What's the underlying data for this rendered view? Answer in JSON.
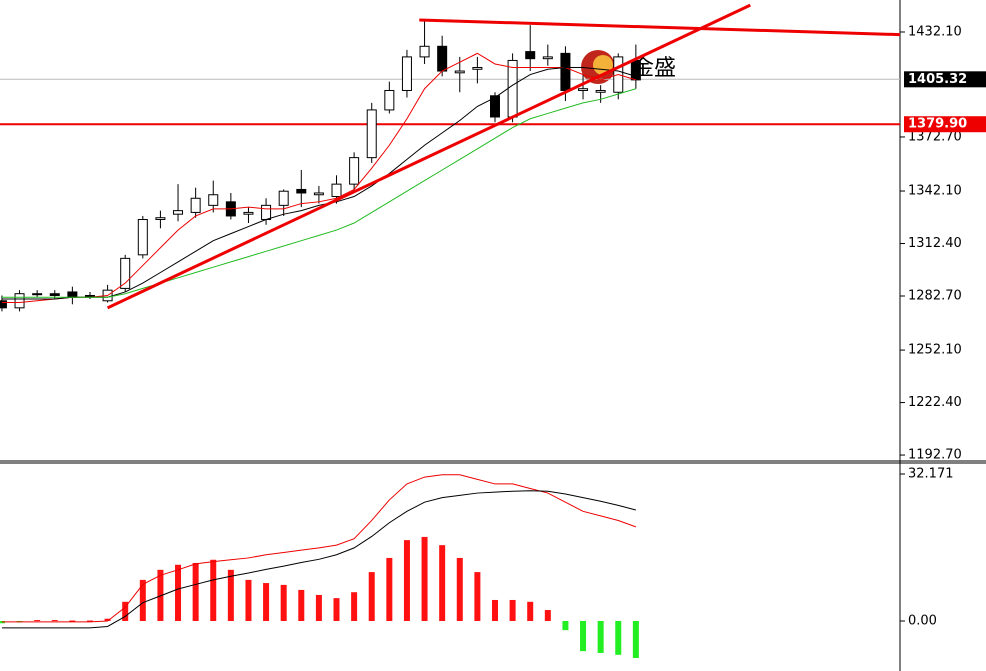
{
  "chart_data": [
    {
      "type": "candlestick",
      "watermark": "金盛",
      "ylim": [
        1189.9,
        1450.2
      ],
      "xlim": [
        -0.11,
        51.0
      ],
      "yticks": [
        {
          "value": 1432.1,
          "label": "1432.10"
        },
        {
          "value": 1372.7,
          "label": "1372.70"
        },
        {
          "value": 1342.1,
          "label": "1342.10"
        },
        {
          "value": 1312.4,
          "label": "1312.40"
        },
        {
          "value": 1282.7,
          "label": "1282.70"
        },
        {
          "value": 1252.1,
          "label": "1252.10"
        },
        {
          "value": 1222.4,
          "label": "1222.40"
        },
        {
          "value": 1192.7,
          "label": "1192.70"
        }
      ],
      "open": [
        1280,
        1276,
        1284,
        1284,
        1285,
        1283,
        1280,
        1287,
        1306,
        1326,
        1329,
        1330,
        1334,
        1336,
        1329,
        1326,
        1334,
        1343,
        1340,
        1339,
        1346,
        1361,
        1388,
        1399,
        1418,
        1424,
        1409,
        1411,
        1396,
        1384,
        1421,
        1417,
        1420,
        1399,
        1398,
        1398,
        1416
      ],
      "high": [
        1283,
        1286,
        1286,
        1286,
        1288,
        1285,
        1289,
        1306,
        1328,
        1331,
        1346,
        1344,
        1348,
        1341,
        1333,
        1338,
        1343,
        1354,
        1345,
        1351,
        1364,
        1392,
        1404,
        1422,
        1439,
        1430,
        1418,
        1418,
        1398,
        1420,
        1436,
        1425,
        1424,
        1408,
        1402,
        1420,
        1425
      ],
      "low": [
        1274,
        1274,
        1282,
        1281,
        1278,
        1281,
        1279,
        1285,
        1304,
        1321,
        1325,
        1327,
        1330,
        1326,
        1324,
        1323,
        1328,
        1333,
        1335,
        1335,
        1341,
        1358,
        1386,
        1395,
        1414,
        1407,
        1398,
        1403,
        1381,
        1381,
        1410,
        1413,
        1393,
        1394,
        1392,
        1394,
        1400
      ],
      "close": [
        1276,
        1284,
        1284,
        1283,
        1282,
        1283,
        1286,
        1304,
        1326,
        1327,
        1331,
        1338,
        1340,
        1328,
        1330,
        1334,
        1342,
        1341,
        1341,
        1346,
        1361,
        1388,
        1399,
        1418,
        1424,
        1410,
        1410,
        1412,
        1384,
        1416,
        1417,
        1418,
        1399,
        1400,
        1399,
        1418,
        1405
      ],
      "up_color": "#ffffff",
      "down_color": "#000000",
      "series": [
        {
          "color": "#ee0000",
          "values": [
            1279,
            1279,
            1280,
            1281,
            1282,
            1282,
            1283,
            1290,
            1300,
            1310,
            1320,
            1328,
            1332,
            1332,
            1333,
            1332,
            1332,
            1335,
            1336,
            1338,
            1343,
            1355,
            1368,
            1383,
            1400,
            1410,
            1415,
            1420,
            1414,
            1412,
            1412,
            1412,
            1412,
            1408,
            1405,
            1408,
            1405
          ]
        },
        {
          "color": "#000000",
          "values": [
            1281,
            1281,
            1281,
            1281,
            1282,
            1282,
            1282,
            1285,
            1290,
            1296,
            1302,
            1308,
            1314,
            1318,
            1322,
            1326,
            1329,
            1331,
            1334,
            1336,
            1339,
            1345,
            1352,
            1360,
            1368,
            1375,
            1382,
            1390,
            1395,
            1402,
            1408,
            1411,
            1412,
            1412,
            1411,
            1410,
            1407
          ]
        },
        {
          "color": "#22bb22",
          "values": [
            1282,
            1282,
            1282,
            1282,
            1282,
            1282,
            1282,
            1284,
            1287,
            1290,
            1293,
            1296,
            1299,
            1302,
            1305,
            1308,
            1311,
            1314,
            1317,
            1320,
            1324,
            1330,
            1336,
            1342,
            1348,
            1354,
            1360,
            1366,
            1372,
            1378,
            1383,
            1386,
            1389,
            1392,
            1394,
            1397,
            1400
          ]
        }
      ],
      "hlines": [
        {
          "value": 1405.32,
          "label": "1405.32",
          "color": "#bbbbbb",
          "box_color": "#000000"
        },
        {
          "value": 1379.9,
          "label": "1379.90",
          "color": "#ee0000",
          "box_color": "#ee0000"
        }
      ],
      "trendlines": [
        {
          "x": [
            6,
            42.5
          ],
          "y": [
            1276,
            1447.3
          ],
          "color": "#ee0000"
        },
        {
          "x": [
            23.7,
            51.0
          ],
          "y": [
            1438.9,
            1430.6
          ],
          "color": "#ee0000"
        }
      ]
    },
    {
      "type": "macd",
      "ylim": [
        -10.29,
        34.58
      ],
      "xlim": [
        -0.11,
        51.0
      ],
      "yticks": [
        32.171,
        {
          "value": 0,
          "label": "0.00"
        }
      ],
      "up_color": "#ff1111",
      "down_color": "#22ee22",
      "histogram": [
        -0.5,
        -0.3,
        0.2,
        0.2,
        0.1,
        0.1,
        0.5,
        4.2,
        9.0,
        11.2,
        12.3,
        12.7,
        13.4,
        11.2,
        9.0,
        8.3,
        7.9,
        6.8,
        5.7,
        5.0,
        6.3,
        10.7,
        13.8,
        17.7,
        18.4,
        16.6,
        13.8,
        10.7,
        4.6,
        4.6,
        4.2,
        2.4,
        -2.0,
        -6.6,
        -7.0,
        -7.4,
        -8.1
      ],
      "series": [
        {
          "color": "#ee0000",
          "values": [
            -0.2,
            -0.2,
            -0.2,
            -0.2,
            -0.2,
            -0.2,
            0,
            3,
            8,
            10,
            11.2,
            12.5,
            13,
            13.4,
            13.8,
            14.5,
            15,
            15.5,
            16,
            16.6,
            18,
            22,
            26.5,
            30,
            31.5,
            32,
            32,
            31,
            30,
            30,
            29,
            28,
            26,
            24,
            23,
            22,
            20.6
          ]
        },
        {
          "color": "#000000",
          "values": [
            -1.5,
            -1.5,
            -1.5,
            -1.5,
            -1.5,
            -1.5,
            -1.2,
            1,
            4,
            5.5,
            7,
            8,
            9,
            9.8,
            10.5,
            11.3,
            12,
            12.8,
            13.5,
            14.5,
            16,
            18.5,
            21.5,
            24,
            26,
            27,
            27.5,
            28,
            28.2,
            28.4,
            28.5,
            28.4,
            27.8,
            27,
            26.2,
            25.3,
            24.3
          ]
        }
      ]
    }
  ]
}
